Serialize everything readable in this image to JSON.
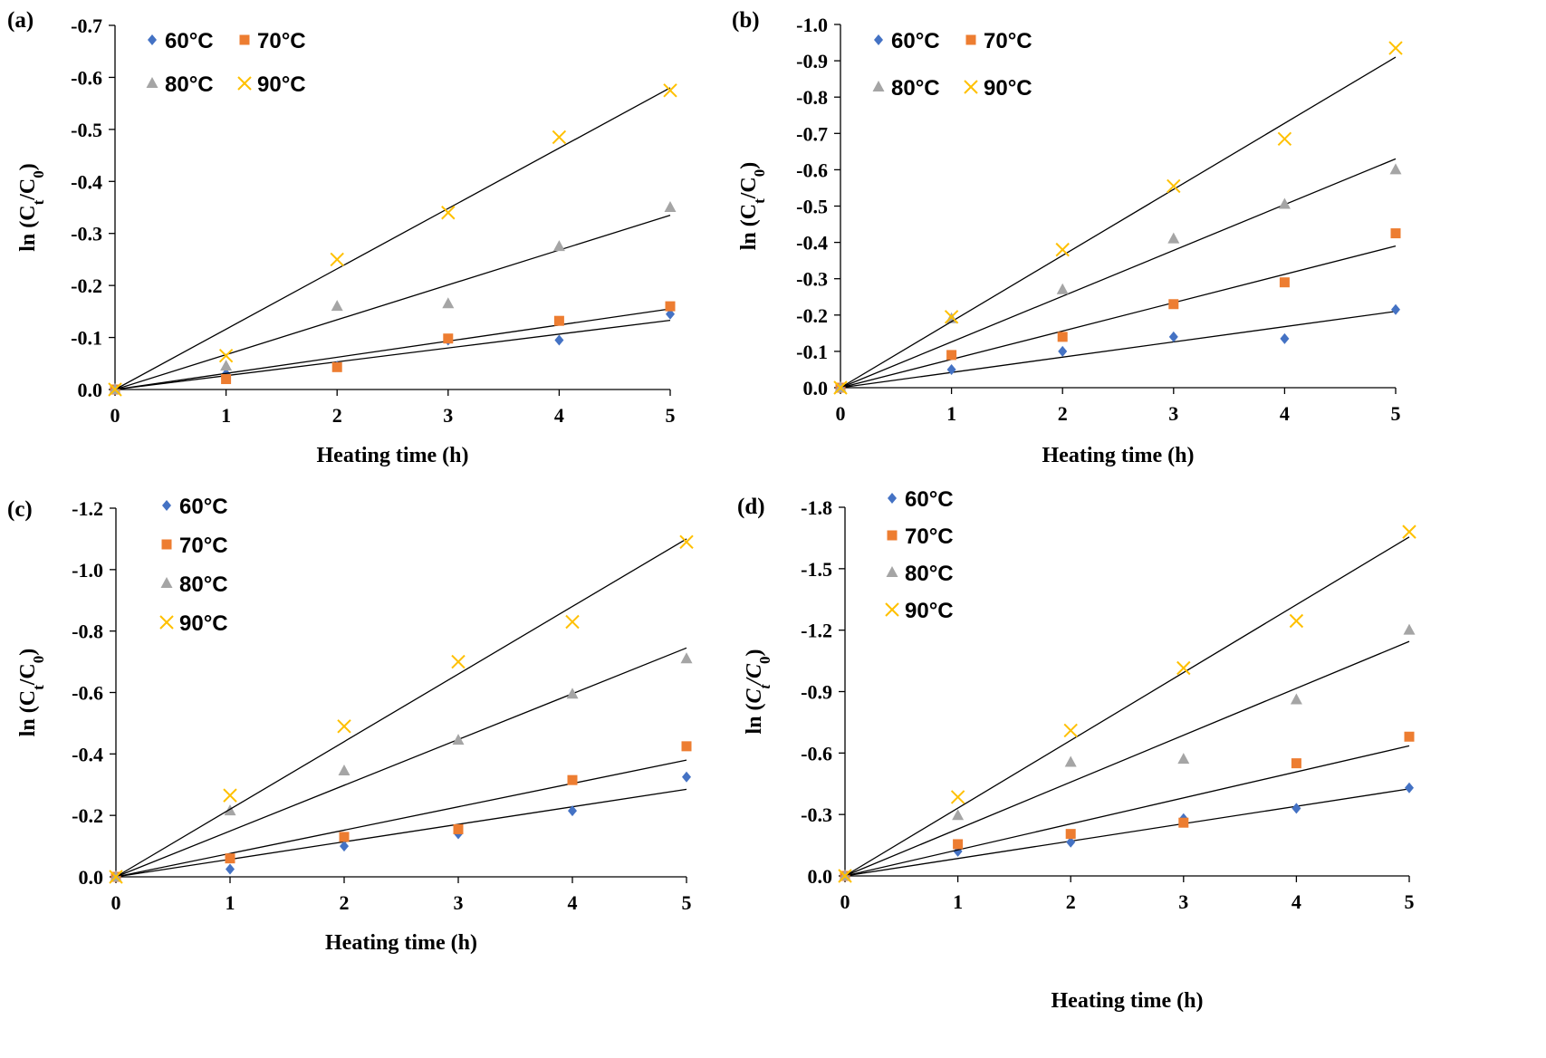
{
  "figure": {
    "panels": [
      "a",
      "b",
      "c",
      "d"
    ]
  },
  "chart_data": [
    {
      "id": "a",
      "panel_label": "(a)",
      "type": "scatter",
      "xlabel": "Heating time (h)",
      "ylabel": "ln (Ct/C0)",
      "xlim": [
        0,
        5
      ],
      "ylim": [
        0.0,
        -0.7
      ],
      "xticks": [
        0,
        1,
        2,
        3,
        4,
        5
      ],
      "yticks": [
        0.0,
        -0.1,
        -0.2,
        -0.3,
        -0.4,
        -0.5,
        -0.6,
        -0.7
      ],
      "ytick_labels": [
        "0.0",
        "-0.1",
        "-0.2",
        "-0.3",
        "-0.4",
        "-0.5",
        "-0.6",
        "-0.7"
      ],
      "grid": false,
      "legend_layout": "two columns, top-left",
      "series": [
        {
          "name": "60°C",
          "marker": "diamond",
          "color": "#4472C4",
          "x": [
            0,
            1,
            2,
            3,
            4,
            5
          ],
          "y": [
            0.0,
            -0.03,
            -0.045,
            -0.095,
            -0.095,
            -0.145
          ],
          "trend_end": -0.133
        },
        {
          "name": "70°C",
          "marker": "square",
          "color": "#ED7D31",
          "x": [
            0,
            1,
            2,
            3,
            4,
            5
          ],
          "y": [
            0.0,
            -0.02,
            -0.043,
            -0.098,
            -0.132,
            -0.16
          ],
          "trend_end": -0.155
        },
        {
          "name": "80°C",
          "marker": "triangle",
          "color": "#A5A5A5",
          "x": [
            0,
            1,
            2,
            3,
            4,
            5
          ],
          "y": [
            0.0,
            -0.045,
            -0.16,
            -0.165,
            -0.275,
            -0.35
          ],
          "trend_end": -0.335
        },
        {
          "name": "90°C",
          "marker": "x",
          "color": "#FFC000",
          "x": [
            0,
            1,
            2,
            3,
            4,
            5
          ],
          "y": [
            0.0,
            -0.065,
            -0.25,
            -0.34,
            -0.485,
            -0.575
          ],
          "trend_end": -0.58
        }
      ]
    },
    {
      "id": "b",
      "panel_label": "(b)",
      "type": "scatter",
      "xlabel": "Heating time (h)",
      "ylabel": "ln (Ct/C0)",
      "xlim": [
        0,
        5
      ],
      "ylim": [
        0.0,
        -1.0
      ],
      "xticks": [
        0,
        1,
        2,
        3,
        4,
        5
      ],
      "yticks": [
        0.0,
        -0.1,
        -0.2,
        -0.3,
        -0.4,
        -0.5,
        -0.6,
        -0.7,
        -0.8,
        -0.9,
        -1.0
      ],
      "ytick_labels": [
        "0.0",
        "-0.1",
        "-0.2",
        "-0.3",
        "-0.4",
        "-0.5",
        "-0.6",
        "-0.7",
        "-0.8",
        "-0.9",
        "-1.0"
      ],
      "grid": false,
      "legend_layout": "two columns, top-left",
      "series": [
        {
          "name": "60°C",
          "marker": "diamond",
          "color": "#4472C4",
          "x": [
            0,
            1,
            2,
            3,
            4,
            5
          ],
          "y": [
            0.0,
            -0.05,
            -0.1,
            -0.14,
            -0.135,
            -0.215
          ],
          "trend_end": -0.21
        },
        {
          "name": "70°C",
          "marker": "square",
          "color": "#ED7D31",
          "x": [
            0,
            1,
            2,
            3,
            4,
            5
          ],
          "y": [
            0.0,
            -0.09,
            -0.14,
            -0.23,
            -0.29,
            -0.425
          ],
          "trend_end": -0.39
        },
        {
          "name": "80°C",
          "marker": "triangle",
          "color": "#A5A5A5",
          "x": [
            0,
            1,
            2,
            3,
            4,
            5
          ],
          "y": [
            0.0,
            -0.19,
            -0.27,
            -0.41,
            -0.505,
            -0.6
          ],
          "trend_end": -0.63
        },
        {
          "name": "90°C",
          "marker": "x",
          "color": "#FFC000",
          "x": [
            0,
            1,
            2,
            3,
            4,
            5
          ],
          "y": [
            0.0,
            -0.195,
            -0.38,
            -0.555,
            -0.685,
            -0.935
          ],
          "trend_end": -0.91
        }
      ]
    },
    {
      "id": "c",
      "panel_label": "(c)",
      "type": "scatter",
      "xlabel": "Heating time (h)",
      "ylabel": "ln (Ct/C0)",
      "xlim": [
        0,
        5
      ],
      "ylim": [
        0.0,
        -1.2
      ],
      "xticks": [
        0,
        1,
        2,
        3,
        4,
        5
      ],
      "yticks": [
        0.0,
        -0.2,
        -0.4,
        -0.6,
        -0.8,
        -1.0,
        -1.2
      ],
      "ytick_labels": [
        "0.0",
        "-0.2",
        "-0.4",
        "-0.6",
        "-0.8",
        "-1.0",
        "-1.2"
      ],
      "grid": false,
      "legend_layout": "one column, top-left",
      "series": [
        {
          "name": "60°C",
          "marker": "diamond",
          "color": "#4472C4",
          "x": [
            0,
            1,
            2,
            3,
            4,
            5
          ],
          "y": [
            0.0,
            -0.025,
            -0.1,
            -0.14,
            -0.215,
            -0.325
          ],
          "trend_end": -0.285
        },
        {
          "name": "70°C",
          "marker": "square",
          "color": "#ED7D31",
          "x": [
            0,
            1,
            2,
            3,
            4,
            5
          ],
          "y": [
            0.0,
            -0.06,
            -0.13,
            -0.155,
            -0.315,
            -0.425
          ],
          "trend_end": -0.38
        },
        {
          "name": "80°C",
          "marker": "triangle",
          "color": "#A5A5A5",
          "x": [
            0,
            1,
            2,
            3,
            4,
            5
          ],
          "y": [
            0.0,
            -0.215,
            -0.345,
            -0.445,
            -0.595,
            -0.71
          ],
          "trend_end": -0.745
        },
        {
          "name": "90°C",
          "marker": "x",
          "color": "#FFC000",
          "x": [
            0,
            1,
            2,
            3,
            4,
            5
          ],
          "y": [
            0.0,
            -0.265,
            -0.49,
            -0.7,
            -0.83,
            -1.09
          ],
          "trend_end": -1.1
        }
      ]
    },
    {
      "id": "d",
      "panel_label": "(d)",
      "type": "scatter",
      "xlabel": "Heating time (h)",
      "ylabel": "ln (Ct/C0)",
      "ylabel_italic": true,
      "xlim": [
        0,
        5
      ],
      "ylim": [
        0.0,
        -1.8
      ],
      "xticks": [
        0,
        1,
        2,
        3,
        4,
        5
      ],
      "yticks": [
        0.0,
        -0.3,
        -0.6,
        -0.9,
        -1.2,
        -1.5,
        -1.8
      ],
      "ytick_labels": [
        "0.0",
        "-0.3",
        "-0.6",
        "-0.9",
        "-1.2",
        "-1.5",
        "-1.8"
      ],
      "grid": false,
      "legend_layout": "one column, top-left",
      "series": [
        {
          "name": "60°C",
          "marker": "diamond",
          "color": "#4472C4",
          "x": [
            0,
            1,
            2,
            3,
            4,
            5
          ],
          "y": [
            0.0,
            -0.12,
            -0.165,
            -0.28,
            -0.33,
            -0.43
          ],
          "trend_end": -0.425
        },
        {
          "name": "70°C",
          "marker": "square",
          "color": "#ED7D31",
          "x": [
            0,
            1,
            2,
            3,
            4,
            5
          ],
          "y": [
            0.0,
            -0.155,
            -0.205,
            -0.26,
            -0.55,
            -0.68
          ],
          "trend_end": -0.635
        },
        {
          "name": "80°C",
          "marker": "triangle",
          "color": "#A5A5A5",
          "x": [
            0,
            1,
            2,
            3,
            4,
            5
          ],
          "y": [
            0.0,
            -0.295,
            -0.555,
            -0.57,
            -0.86,
            -1.2
          ],
          "trend_end": -1.145
        },
        {
          "name": "90°C",
          "marker": "x",
          "color": "#FFC000",
          "x": [
            0,
            1,
            2,
            3,
            4,
            5
          ],
          "y": [
            0.0,
            -0.385,
            -0.71,
            -1.015,
            -1.245,
            -1.68
          ],
          "trend_end": -1.655
        }
      ]
    }
  ]
}
